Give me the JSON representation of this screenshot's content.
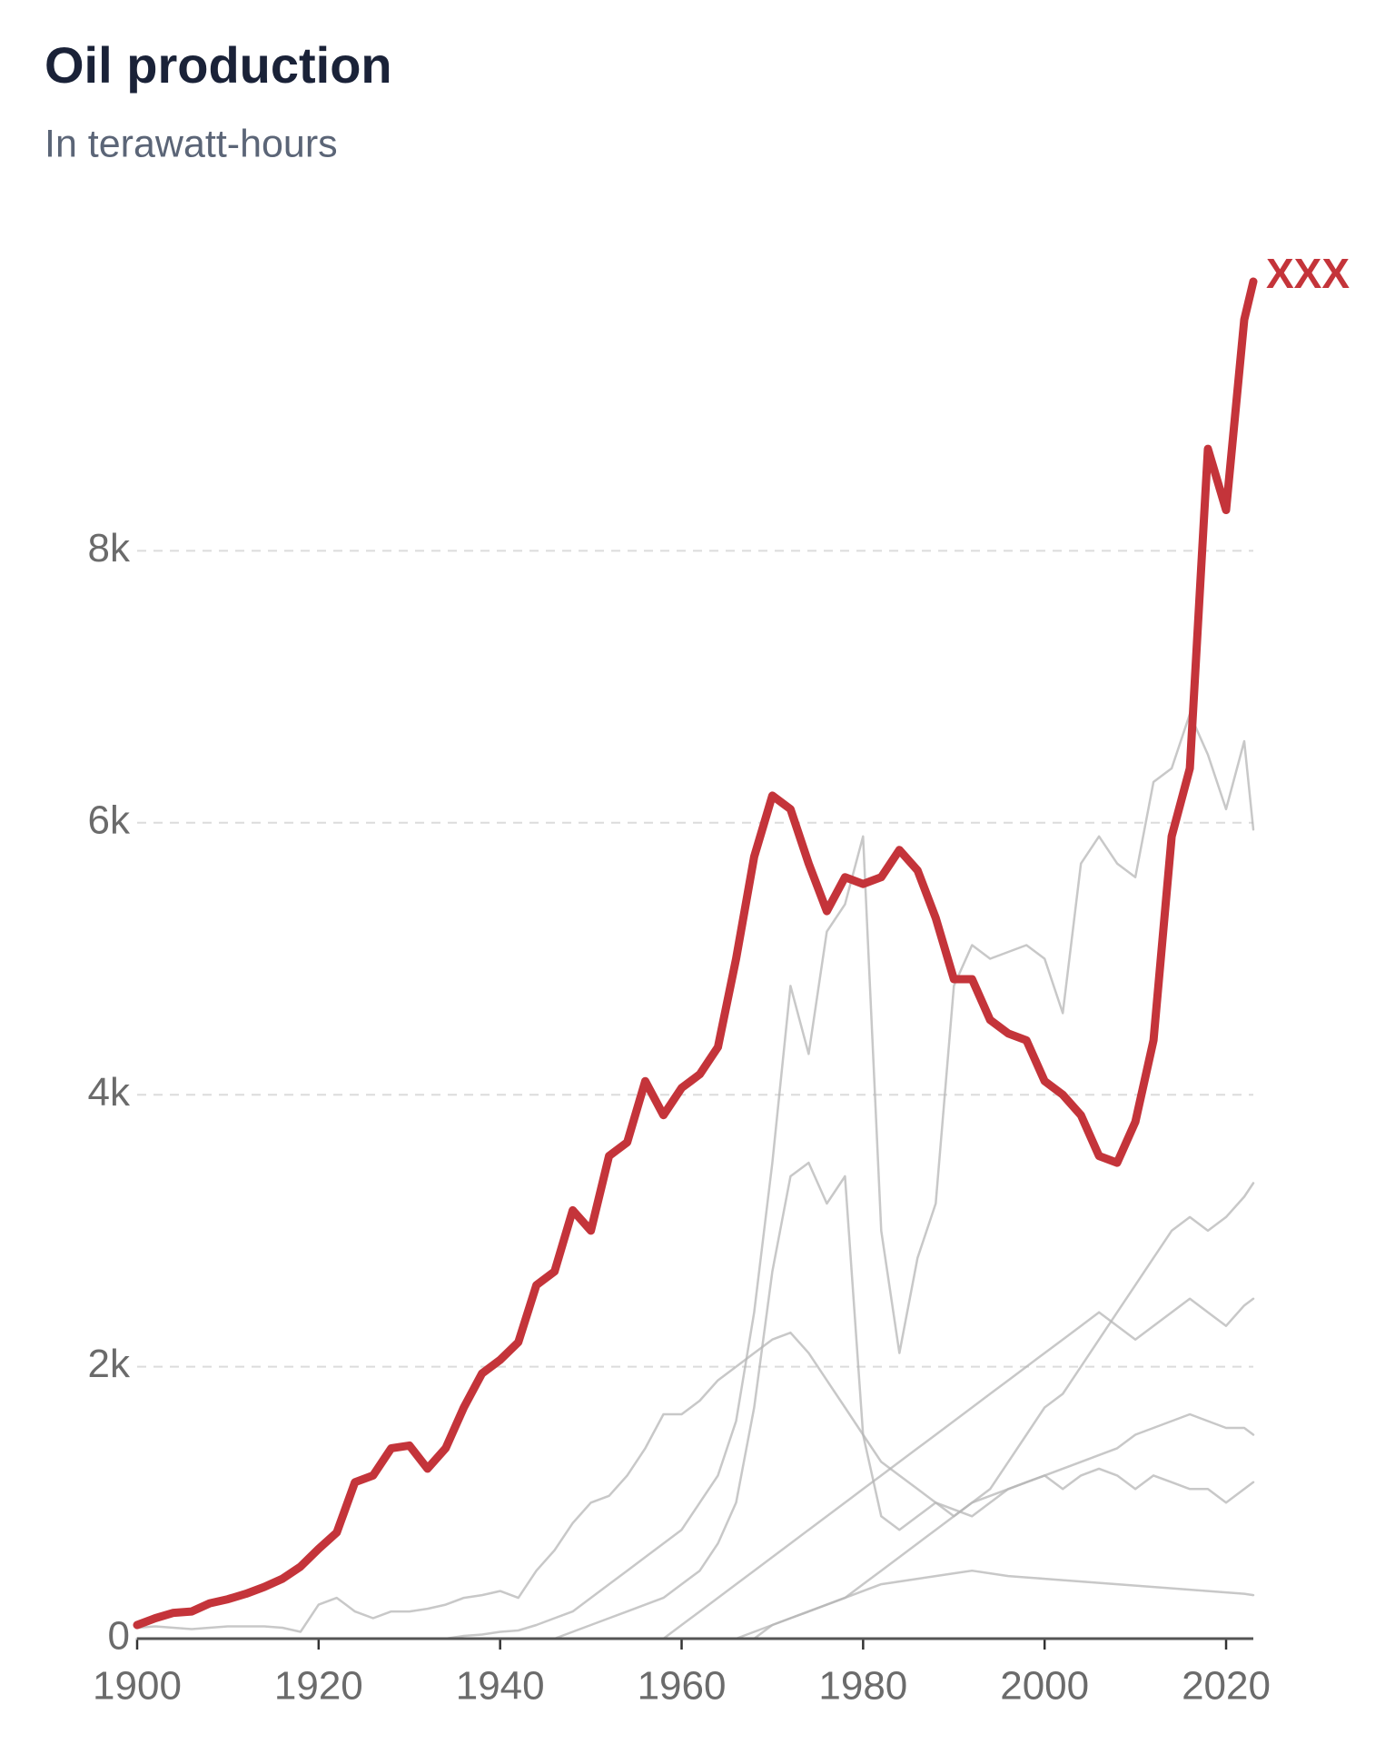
{
  "chart_data": {
    "type": "line",
    "title": "Oil production",
    "subtitle": "In terawatt-hours",
    "x": [
      1900,
      1902,
      1904,
      1906,
      1908,
      1910,
      1912,
      1914,
      1916,
      1918,
      1920,
      1922,
      1924,
      1926,
      1928,
      1930,
      1932,
      1934,
      1936,
      1938,
      1940,
      1942,
      1944,
      1946,
      1948,
      1950,
      1952,
      1954,
      1956,
      1958,
      1960,
      1962,
      1964,
      1966,
      1968,
      1970,
      1972,
      1974,
      1976,
      1978,
      1980,
      1982,
      1984,
      1986,
      1988,
      1990,
      1992,
      1994,
      1996,
      1998,
      2000,
      2002,
      2004,
      2006,
      2008,
      2010,
      2012,
      2014,
      2016,
      2018,
      2020,
      2022,
      2023
    ],
    "xlim": [
      1900,
      2023
    ],
    "xticks": [
      1900,
      1920,
      1940,
      1960,
      1980,
      2000,
      2020
    ],
    "ylim": [
      0,
      10000
    ],
    "yticks": [
      0,
      {
        "value": 2000,
        "label": "2k"
      },
      {
        "value": 4000,
        "label": "4k"
      },
      {
        "value": 6000,
        "label": "6k"
      },
      {
        "value": 8000,
        "label": "8k"
      }
    ],
    "grid": true,
    "series": [
      {
        "color": "#b5b5b5",
        "values": [
          0,
          0,
          0,
          0,
          0,
          0,
          0,
          0,
          0,
          0,
          0,
          0,
          0,
          0,
          0,
          0,
          0,
          0,
          20,
          30,
          50,
          60,
          100,
          150,
          200,
          300,
          400,
          500,
          600,
          700,
          800,
          1000,
          1200,
          1600,
          2400,
          3500,
          4800,
          4300,
          5200,
          5400,
          5900,
          3000,
          2100,
          2800,
          3200,
          4800,
          5100,
          5000,
          5050,
          5100,
          5000,
          4600,
          5700,
          5900,
          5700,
          5600,
          6300,
          6400,
          6800,
          6500,
          6100,
          6600,
          5950
        ]
      },
      {
        "color": "#b5b5b5",
        "values": [
          0,
          0,
          0,
          0,
          0,
          0,
          0,
          0,
          0,
          0,
          0,
          0,
          0,
          0,
          0,
          0,
          0,
          0,
          0,
          0,
          0,
          0,
          0,
          0,
          50,
          100,
          150,
          200,
          250,
          300,
          400,
          500,
          700,
          1000,
          1700,
          2700,
          3400,
          3500,
          3200,
          3400,
          1500,
          900,
          800,
          900,
          1000,
          900,
          1000,
          1050,
          1100,
          1150,
          1200,
          1100,
          1200,
          1250,
          1200,
          1100,
          1200,
          1150,
          1100,
          1100,
          1000,
          1100,
          1150
        ]
      },
      {
        "color": "#b5b5b5",
        "values": [
          80,
          90,
          80,
          70,
          80,
          90,
          90,
          90,
          80,
          50,
          250,
          300,
          200,
          150,
          200,
          200,
          220,
          250,
          300,
          320,
          350,
          300,
          500,
          650,
          850,
          1000,
          1050,
          1200,
          1400,
          1650,
          1650,
          1750,
          1900,
          2000,
          2100,
          2200,
          2250,
          2100,
          1900,
          1700,
          1500,
          1300,
          1200,
          1100,
          1000,
          950,
          900,
          1000,
          1100,
          1150,
          1200,
          1250,
          1300,
          1350,
          1400,
          1500,
          1550,
          1600,
          1650,
          1600,
          1550,
          1550,
          1500
        ]
      },
      {
        "color": "#b5b5b5",
        "values": [
          0,
          0,
          0,
          0,
          0,
          0,
          0,
          0,
          0,
          0,
          0,
          0,
          0,
          0,
          0,
          0,
          0,
          0,
          0,
          0,
          0,
          0,
          0,
          0,
          0,
          0,
          0,
          0,
          0,
          0,
          0,
          0,
          0,
          0,
          50,
          100,
          150,
          200,
          250,
          300,
          400,
          500,
          600,
          700,
          800,
          900,
          1000,
          1100,
          1300,
          1500,
          1700,
          1800,
          2000,
          2200,
          2400,
          2600,
          2800,
          3000,
          3100,
          3000,
          3100,
          3250,
          3350
        ]
      },
      {
        "color": "#b5b5b5",
        "values": [
          0,
          0,
          0,
          0,
          0,
          0,
          0,
          0,
          0,
          0,
          0,
          0,
          0,
          0,
          0,
          0,
          0,
          0,
          0,
          0,
          0,
          0,
          0,
          0,
          0,
          0,
          0,
          0,
          0,
          0,
          100,
          200,
          300,
          400,
          500,
          600,
          700,
          800,
          900,
          1000,
          1100,
          1200,
          1300,
          1400,
          1500,
          1600,
          1700,
          1800,
          1900,
          2000,
          2100,
          2200,
          2300,
          2400,
          2300,
          2200,
          2300,
          2400,
          2500,
          2400,
          2300,
          2450,
          2500
        ]
      },
      {
        "color": "#b5b5b5",
        "values": [
          0,
          0,
          0,
          0,
          0,
          0,
          0,
          0,
          0,
          0,
          0,
          0,
          0,
          0,
          0,
          0,
          0,
          0,
          0,
          0,
          0,
          0,
          0,
          0,
          0,
          0,
          0,
          0,
          0,
          0,
          0,
          0,
          0,
          0,
          0,
          100,
          150,
          200,
          250,
          300,
          350,
          400,
          420,
          440,
          460,
          480,
          500,
          480,
          460,
          450,
          440,
          430,
          420,
          410,
          400,
          390,
          380,
          370,
          360,
          350,
          340,
          330,
          320
        ]
      },
      {
        "name": "XXX",
        "color": "#c4343a",
        "values": [
          100,
          150,
          190,
          200,
          260,
          290,
          330,
          380,
          440,
          530,
          660,
          780,
          1150,
          1200,
          1400,
          1420,
          1250,
          1400,
          1700,
          1950,
          2050,
          2180,
          2600,
          2700,
          3150,
          3000,
          3550,
          3650,
          4100,
          3850,
          4050,
          4150,
          4350,
          5000,
          5750,
          6200,
          6100,
          5700,
          5350,
          5600,
          5550,
          5600,
          5800,
          5650,
          5300,
          4850,
          4850,
          4550,
          4450,
          4400,
          4100,
          4000,
          3850,
          3550,
          3500,
          3800,
          4400,
          5900,
          6400,
          8750,
          8300,
          9700,
          9980
        ]
      }
    ]
  }
}
